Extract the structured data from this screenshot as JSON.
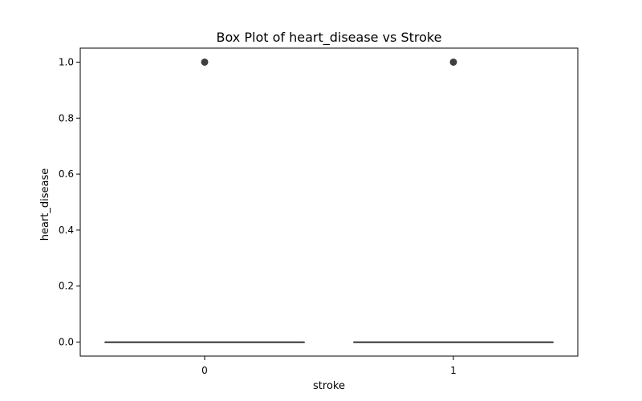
{
  "chart_data": {
    "type": "box",
    "title": "Box Plot of heart_disease vs Stroke",
    "xlabel": "stroke",
    "ylabel": "heart_disease",
    "categories": [
      "0",
      "1"
    ],
    "ylim": [
      -0.05,
      1.05
    ],
    "yticks": [
      0.0,
      0.2,
      0.4,
      0.6,
      0.8,
      1.0
    ],
    "ytick_labels": [
      "0.0",
      "0.2",
      "0.4",
      "0.6",
      "0.8",
      "1.0"
    ],
    "grid": false,
    "legend": "none",
    "boxes": [
      {
        "category": "0",
        "min": 0,
        "q1": 0,
        "median": 0,
        "q3": 0,
        "max": 0,
        "outliers": [
          1
        ]
      },
      {
        "category": "1",
        "min": 0,
        "q1": 0,
        "median": 0,
        "q3": 0,
        "max": 0,
        "outliers": [
          1
        ]
      }
    ],
    "colors": {
      "box_line": "#3f3f3f",
      "outlier": "#3f3f3f",
      "axis": "#000000"
    }
  }
}
